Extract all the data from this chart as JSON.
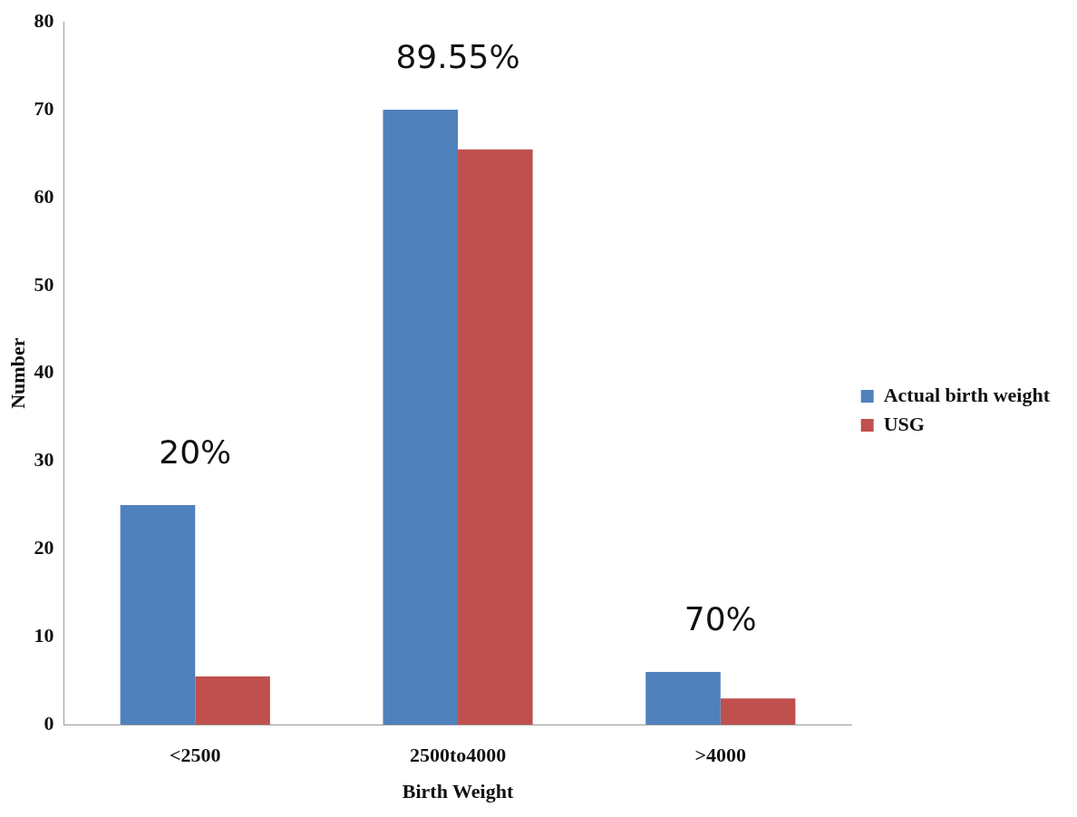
{
  "chart_data": {
    "type": "bar",
    "xlabel": "Birth Weight",
    "ylabel": "Number",
    "categories": [
      "<2500",
      "2500to4000",
      ">4000"
    ],
    "series": [
      {
        "name": "Actual birth weight",
        "color": "#4f81bd",
        "values": [
          25,
          70,
          6
        ]
      },
      {
        "name": "USG",
        "color": "#c0504d",
        "values": [
          5.5,
          65.5,
          3
        ]
      }
    ],
    "ylim": [
      0,
      80
    ],
    "yticks": [
      0,
      10,
      20,
      30,
      40,
      50,
      60,
      70,
      80
    ],
    "grid": false,
    "legend": "right",
    "annotations": [
      "20%",
      "89.55%",
      "70%"
    ]
  }
}
